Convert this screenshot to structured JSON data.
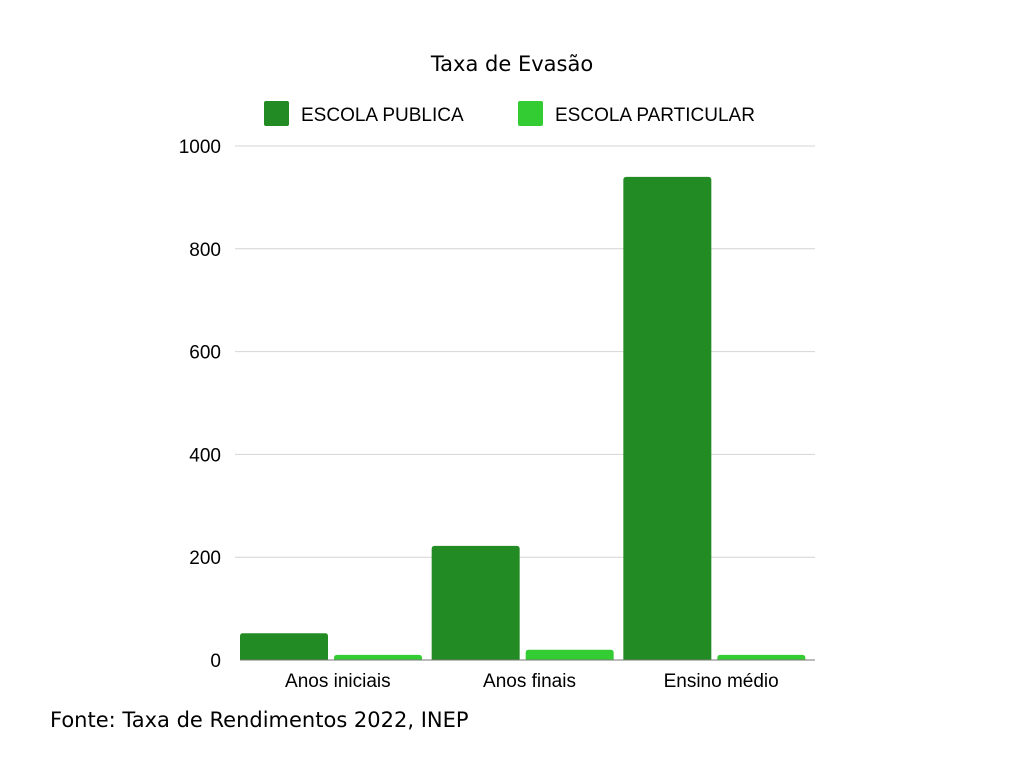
{
  "chart_data": {
    "type": "bar",
    "title": "Taxa de Evasão",
    "categories": [
      "Anos iniciais",
      "Anos finais",
      "Ensino médio"
    ],
    "series": [
      {
        "name": "ESCOLA PUBLICA",
        "color": "#238b23",
        "values": [
          52,
          222,
          940
        ]
      },
      {
        "name": "ESCOLA PARTICULAR",
        "color": "#33cc33",
        "values": [
          10,
          20,
          10
        ]
      }
    ],
    "yticks": [
      0,
      200,
      400,
      600,
      800,
      1000
    ],
    "ylim": [
      0,
      1000
    ],
    "grid": true,
    "legend_position": "top"
  },
  "source": "Fonte: Taxa de Rendimentos 2022, INEP"
}
